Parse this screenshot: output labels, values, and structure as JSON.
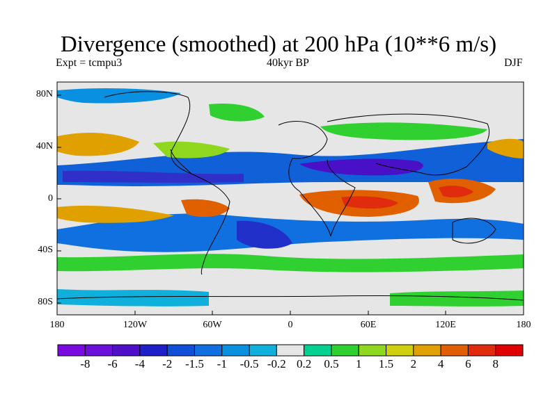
{
  "title": "Divergence (smoothed) at 200 hPa (10**6 m/s)",
  "experiment": "Expt = tcmpu3",
  "period": "40kyr BP",
  "season": "DJF",
  "lat_labels": [
    "80N",
    "40N",
    "0",
    "40S",
    "80S"
  ],
  "lon_labels": [
    "180",
    "120W",
    "60W",
    "0",
    "60E",
    "120E",
    "180"
  ],
  "colorbar": {
    "labels": [
      "-8",
      "-6",
      "-4",
      "-2",
      "-1.5",
      "-1",
      "-0.5",
      "-0.2",
      "0.2",
      "0.5",
      "1",
      "1.5",
      "2",
      "4",
      "6",
      "8"
    ],
    "colors": [
      "#7a0ae0",
      "#6a10d8",
      "#5010c8",
      "#2020c8",
      "#1050d8",
      "#1070e0",
      "#0a90e0",
      "#10b0dc",
      "#e6e6e6",
      "#00d090",
      "#30d030",
      "#90d820",
      "#d0d010",
      "#e0a000",
      "#e06000",
      "#e02c0c",
      "#e00000"
    ]
  }
}
